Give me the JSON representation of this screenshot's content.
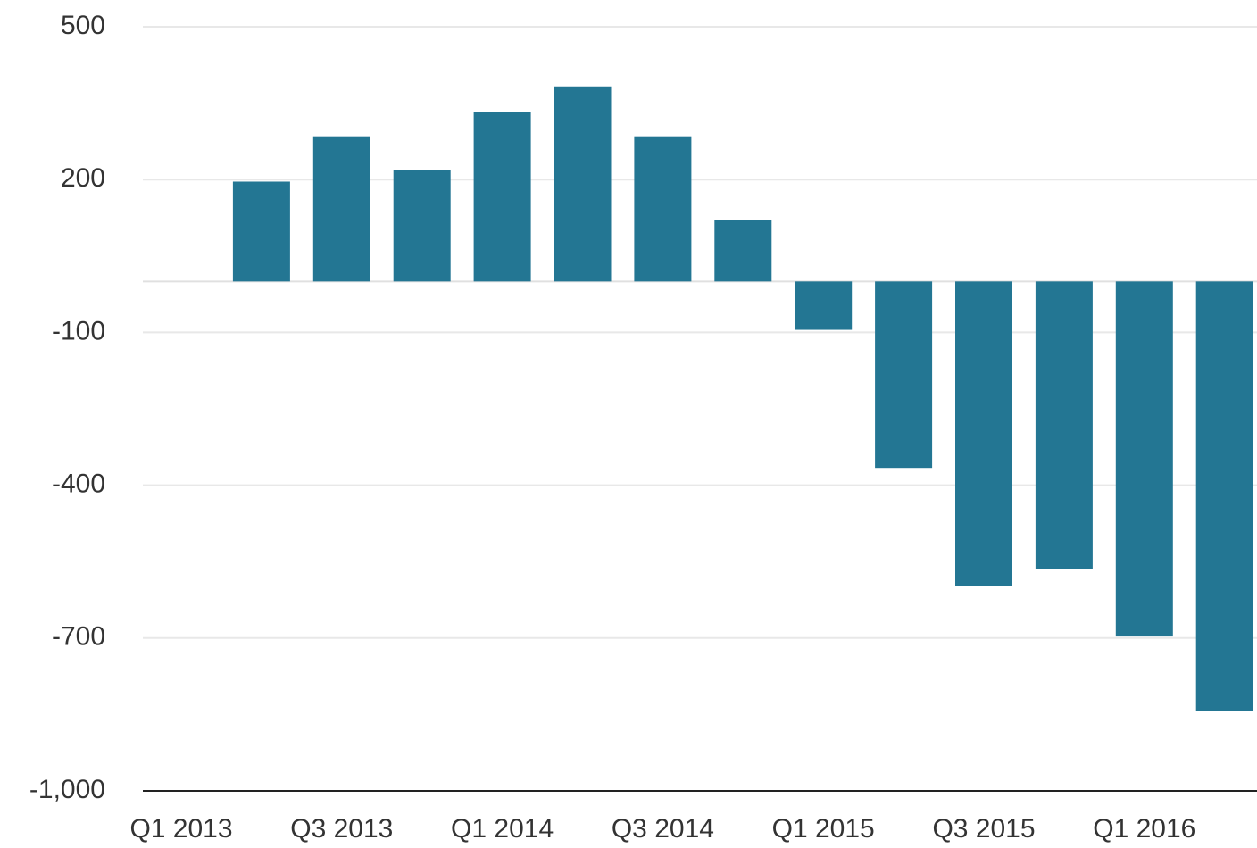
{
  "chart_data": {
    "type": "bar",
    "categories": [
      "Q1 2013",
      null,
      "Q3 2013",
      null,
      "Q1 2014",
      null,
      "Q3 2014",
      null,
      "Q1 2015",
      null,
      "Q3 2015",
      null,
      "Q1 2016",
      null
    ],
    "values": [
      null,
      196,
      285,
      219,
      332,
      383,
      285,
      120,
      -95,
      -366,
      -598,
      -564,
      -697,
      -843
    ],
    "color": "#237693",
    "ylim": [
      -1000,
      500
    ],
    "yticks": [
      {
        "value": -1000,
        "label": "-1,000"
      },
      -700,
      -400,
      -100,
      200,
      500
    ],
    "grid": true
  }
}
